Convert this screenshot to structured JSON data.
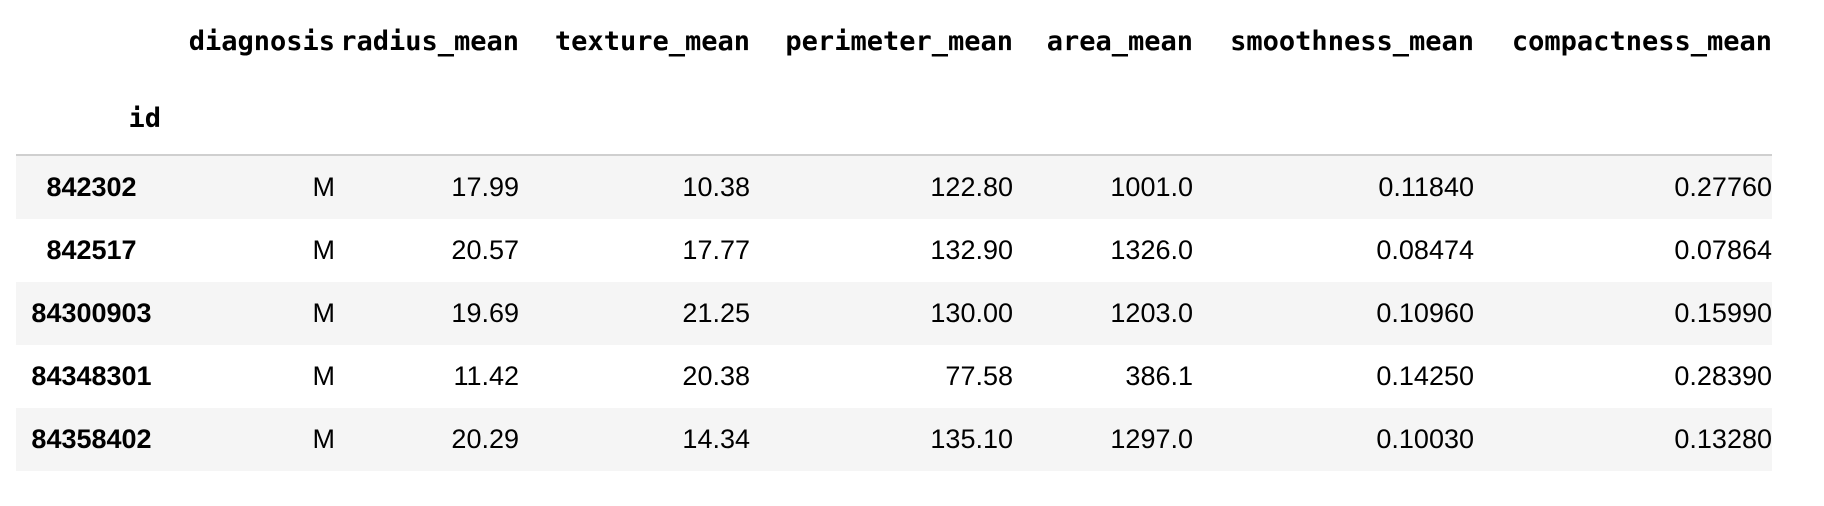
{
  "table": {
    "columns": [
      "diagnosis",
      "radius_mean",
      "texture_mean",
      "perimeter_mean",
      "area_mean",
      "smoothness_mean",
      "compactness_mean"
    ],
    "index_name": "id",
    "rows": [
      {
        "id": "842302",
        "cells": [
          "M",
          "17.99",
          "10.38",
          "122.80",
          "1001.0",
          "0.11840",
          "0.27760"
        ]
      },
      {
        "id": "842517",
        "cells": [
          "M",
          "20.57",
          "17.77",
          "132.90",
          "1326.0",
          "0.08474",
          "0.07864"
        ]
      },
      {
        "id": "84300903",
        "cells": [
          "M",
          "19.69",
          "21.25",
          "130.00",
          "1203.0",
          "0.10960",
          "0.15990"
        ]
      },
      {
        "id": "84348301",
        "cells": [
          "M",
          "11.42",
          "20.38",
          "77.58",
          "386.1",
          "0.14250",
          "0.28390"
        ]
      },
      {
        "id": "84358402",
        "cells": [
          "M",
          "20.29",
          "14.34",
          "135.10",
          "1297.0",
          "0.10030",
          "0.13280"
        ]
      }
    ]
  }
}
